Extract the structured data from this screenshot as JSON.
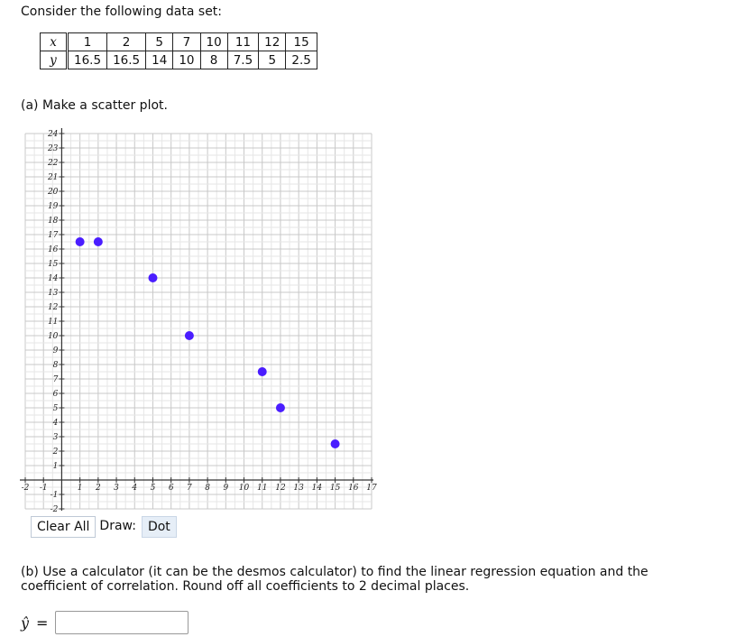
{
  "intro": "Consider the following data set:",
  "table": {
    "x_label": "x",
    "y_label": "y",
    "x": [
      "1",
      "2",
      "5",
      "7",
      "10",
      "11",
      "12",
      "15"
    ],
    "y": [
      "16.5",
      "16.5",
      "14",
      "10",
      "8",
      "7.5",
      "5",
      "2.5"
    ]
  },
  "part_a": "(a) Make a scatter plot.",
  "toolbar": {
    "clear_all": "Clear All",
    "draw_label": "Draw:",
    "dot": "Dot"
  },
  "part_b": "(b) Use a calculator (it can be the desmos calculator) to find the linear regression equation and the coefficient of correlation. Round off all coefficients to 2 decimal places.",
  "answer": {
    "label": "ŷ",
    "equals": "=",
    "value": ""
  },
  "chart_data": {
    "type": "scatter",
    "xlim": [
      -2,
      17
    ],
    "ylim": [
      -2,
      24
    ],
    "grid": true,
    "x_ticks": [
      -2,
      -1,
      1,
      2,
      3,
      4,
      5,
      6,
      7,
      8,
      9,
      10,
      11,
      12,
      13,
      14,
      15,
      16,
      17
    ],
    "y_ticks": [
      -2,
      -1,
      1,
      2,
      3,
      4,
      5,
      6,
      7,
      8,
      9,
      10,
      11,
      12,
      13,
      14,
      15,
      16,
      17,
      18,
      19,
      20,
      21,
      22,
      23,
      24
    ],
    "points": [
      {
        "x": 1,
        "y": 16.5
      },
      {
        "x": 2,
        "y": 16.5
      },
      {
        "x": 5,
        "y": 14
      },
      {
        "x": 7,
        "y": 10
      },
      {
        "x": 11,
        "y": 7.5
      },
      {
        "x": 12,
        "y": 5
      },
      {
        "x": 15,
        "y": 2.5
      }
    ],
    "point_color": "#4a1dff"
  }
}
